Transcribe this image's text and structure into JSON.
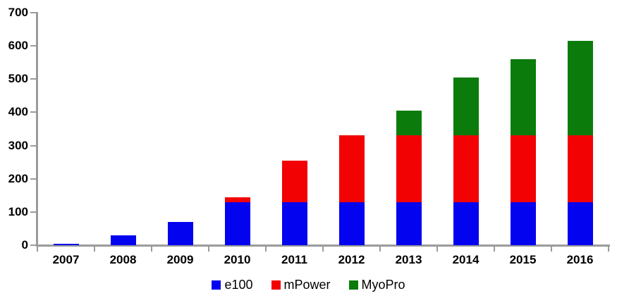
{
  "chart_data": {
    "type": "bar",
    "stacked": true,
    "title": "",
    "xlabel": "",
    "ylabel": "",
    "categories": [
      "2007",
      "2008",
      "2009",
      "2010",
      "2011",
      "2012",
      "2013",
      "2014",
      "2015",
      "2016"
    ],
    "series": [
      {
        "name": "e100",
        "color": "#0303ef",
        "values": [
          5,
          30,
          70,
          130,
          130,
          130,
          130,
          130,
          130,
          130
        ]
      },
      {
        "name": "mPower",
        "color": "#f20202",
        "values": [
          0,
          0,
          0,
          15,
          125,
          200,
          200,
          200,
          200,
          200
        ]
      },
      {
        "name": "MyoPro",
        "color": "#0b7c0b",
        "values": [
          0,
          0,
          0,
          0,
          0,
          0,
          75,
          175,
          230,
          285
        ]
      }
    ],
    "totals": [
      5,
      30,
      70,
      145,
      255,
      330,
      405,
      505,
      560,
      615
    ],
    "ylim": [
      0,
      700
    ],
    "y_ticks": [
      0,
      100,
      200,
      300,
      400,
      500,
      600,
      700
    ],
    "grid": false,
    "legend_position": "bottom"
  },
  "colors": {
    "axis": "#9b9b9b",
    "text": "#000000",
    "background": "#ffffff"
  }
}
